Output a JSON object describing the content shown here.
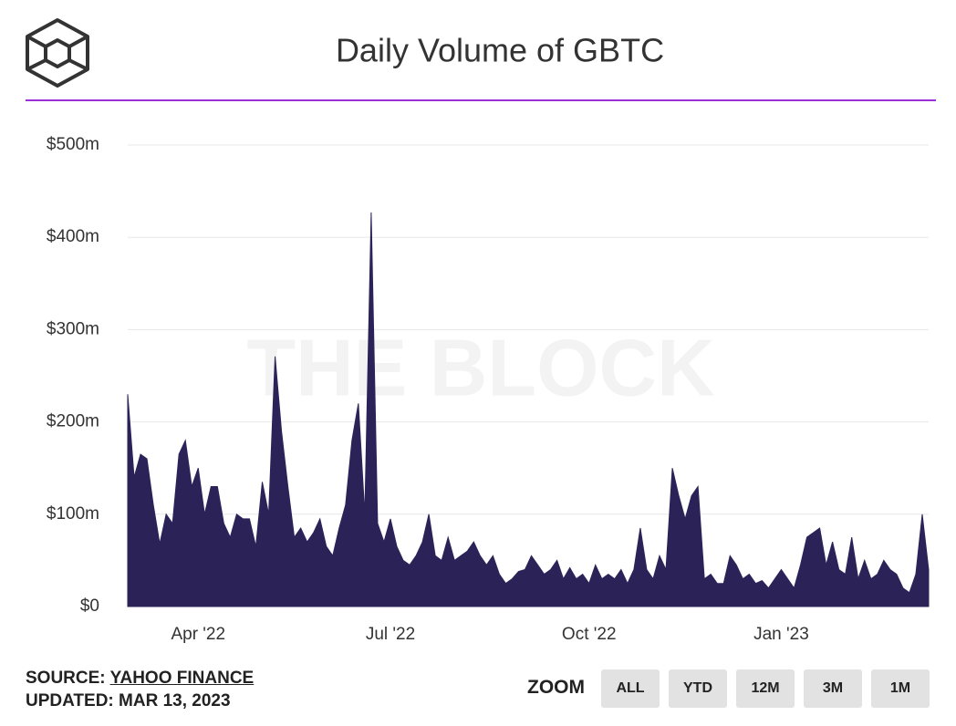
{
  "chart_data": {
    "type": "area",
    "title": "Daily Volume of GBTC",
    "watermark": "THE BLOCK",
    "color": "#2b2358",
    "grid": true,
    "ylim": [
      0,
      500
    ],
    "yticks": [
      {
        "value": 0,
        "label": "$0"
      },
      {
        "value": 100,
        "label": "$100m"
      },
      {
        "value": 200,
        "label": "$200m"
      },
      {
        "value": 300,
        "label": "$300m"
      },
      {
        "value": 400,
        "label": "$400m"
      },
      {
        "value": 500,
        "label": "$500m"
      }
    ],
    "categories": [
      null,
      null,
      null,
      null,
      null,
      null,
      null,
      null,
      null,
      null,
      null,
      "Apr '22",
      null,
      null,
      null,
      null,
      null,
      null,
      null,
      null,
      null,
      null,
      null,
      null,
      null,
      null,
      null,
      null,
      null,
      null,
      null,
      null,
      null,
      null,
      null,
      null,
      null,
      null,
      null,
      null,
      null,
      "Jul '22",
      null,
      null,
      null,
      null,
      null,
      null,
      null,
      null,
      null,
      null,
      null,
      null,
      null,
      null,
      null,
      null,
      null,
      null,
      null,
      null,
      null,
      null,
      null,
      null,
      null,
      null,
      null,
      null,
      null,
      null,
      "Oct '22",
      null,
      null,
      null,
      null,
      null,
      null,
      null,
      null,
      null,
      null,
      null,
      null,
      null,
      null,
      null,
      null,
      null,
      null,
      null,
      null,
      null,
      null,
      null,
      null,
      null,
      null,
      null,
      null,
      null,
      "Jan '23",
      null,
      null,
      null,
      null,
      null,
      null,
      null,
      null,
      null,
      null,
      null,
      null,
      null,
      null,
      null,
      null,
      null,
      null,
      null,
      null,
      null,
      null,
      null
    ],
    "values": [
      230,
      140,
      165,
      160,
      110,
      68,
      100,
      90,
      165,
      180,
      130,
      150,
      100,
      130,
      130,
      90,
      75,
      100,
      95,
      95,
      65,
      135,
      100,
      271,
      190,
      130,
      75,
      85,
      70,
      80,
      95,
      65,
      55,
      85,
      110,
      180,
      220,
      100,
      427,
      90,
      70,
      95,
      65,
      50,
      45,
      55,
      70,
      100,
      55,
      50,
      75,
      50,
      55,
      60,
      70,
      55,
      45,
      55,
      35,
      25,
      30,
      38,
      40,
      55,
      45,
      35,
      40,
      50,
      30,
      42,
      30,
      35,
      25,
      45,
      30,
      35,
      30,
      40,
      25,
      40,
      85,
      40,
      30,
      55,
      40,
      150,
      120,
      95,
      120,
      130,
      30,
      35,
      25,
      25,
      55,
      45,
      30,
      35,
      25,
      28,
      20,
      30,
      40,
      30,
      20,
      45,
      75,
      80,
      85,
      45,
      70,
      40,
      35,
      75,
      30,
      50,
      30,
      35,
      50,
      40,
      35,
      20,
      15,
      35,
      100,
      40
    ]
  },
  "footer": {
    "source_label": "SOURCE:",
    "source": "YAHOO FINANCE",
    "updated": "UPDATED: MAR 13, 2023"
  },
  "zoom": {
    "label": "ZOOM",
    "buttons": [
      "ALL",
      "YTD",
      "12M",
      "3M",
      "1M"
    ]
  }
}
